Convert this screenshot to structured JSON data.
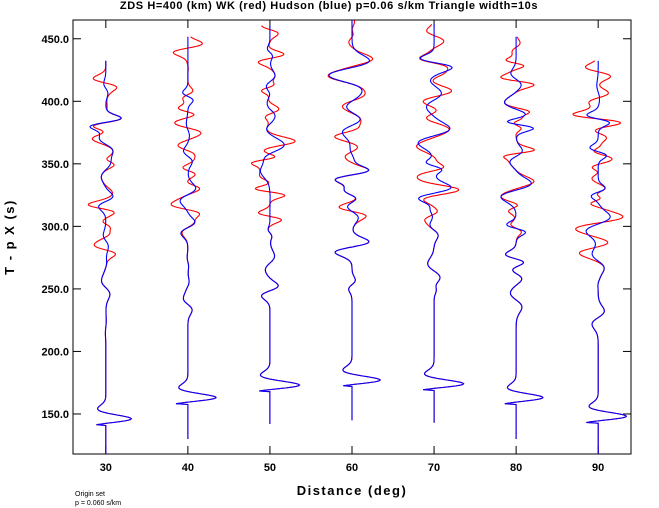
{
  "chart_data": {
    "type": "line",
    "title": "ZDS H=400 (km) WK (red) Hudson (blue) p=0.06 s/km Triangle width=10s",
    "xlabel": "Distance (deg)",
    "ylabel": "T - p X (s)",
    "xlim": [
      26,
      94
    ],
    "ylim": [
      118,
      465
    ],
    "x_ticks": [
      {
        "value": 30,
        "label": "30"
      },
      {
        "value": 40,
        "label": "40"
      },
      {
        "value": 50,
        "label": "50"
      },
      {
        "value": 60,
        "label": "60"
      },
      {
        "value": 70,
        "label": "70"
      },
      {
        "value": 80,
        "label": "80"
      },
      {
        "value": 90,
        "label": "90"
      }
    ],
    "y_ticks": [
      {
        "value": 150,
        "label": "150.0"
      },
      {
        "value": 200,
        "label": "200.0"
      },
      {
        "value": 250,
        "label": "250.0"
      },
      {
        "value": 300,
        "label": "300.0"
      },
      {
        "value": 350,
        "label": "350.0"
      },
      {
        "value": 400,
        "label": "400.0"
      },
      {
        "value": 450,
        "label": "450.0"
      }
    ],
    "grid": false,
    "footnote": [
      "Origin set",
      "p = 0.060 s/km"
    ],
    "series_colors": {
      "WK": "#ff0000",
      "Hudson": "#0000ff"
    },
    "traces": [
      {
        "distance": 30,
        "t_start": 118,
        "t_end": 433,
        "first_arrival": 141,
        "amp": 3.8
      },
      {
        "distance": 40,
        "t_start": 130,
        "t_end": 452,
        "first_arrival": 158,
        "amp": 4.2
      },
      {
        "distance": 50,
        "t_start": 142,
        "t_end": 461,
        "first_arrival": 168,
        "amp": 4.4
      },
      {
        "distance": 60,
        "t_start": 145,
        "t_end": 465,
        "first_arrival": 172,
        "amp": 4.2
      },
      {
        "distance": 70,
        "t_start": 143,
        "t_end": 462,
        "first_arrival": 169,
        "amp": 4.4
      },
      {
        "distance": 80,
        "t_start": 130,
        "t_end": 452,
        "first_arrival": 158,
        "amp": 4.0
      },
      {
        "distance": 90,
        "t_start": 118,
        "t_end": 433,
        "first_arrival": 143,
        "amp": 4.2
      }
    ]
  }
}
